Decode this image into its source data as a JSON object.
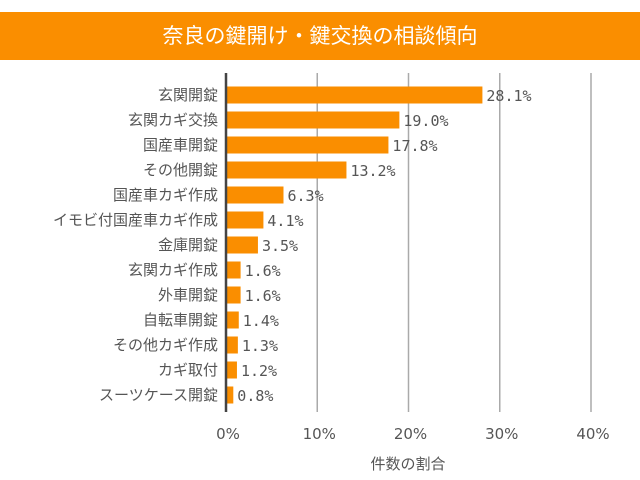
{
  "chart_data": {
    "type": "bar",
    "orientation": "horizontal",
    "title": "奈良の鍵開け・鍵交換の相談傾向",
    "xlabel": "件数の割合",
    "ylabel": "",
    "xlim": [
      0,
      40
    ],
    "xticks": [
      "0%",
      "10%",
      "20%",
      "30%",
      "40%"
    ],
    "grid": true,
    "bar_color": "#FA8E00",
    "categories": [
      "玄関開錠",
      "玄関カギ交換",
      "国産車開錠",
      "その他開錠",
      "国産車カギ作成",
      "イモビ付国産車カギ作成",
      "金庫開錠",
      "玄関カギ作成",
      "外車開錠",
      "自転車開錠",
      "その他カギ作成",
      "カギ取付",
      "スーツケース開錠"
    ],
    "values": [
      28.1,
      19.0,
      17.8,
      13.2,
      6.3,
      4.1,
      3.5,
      1.6,
      1.6,
      1.4,
      1.3,
      1.2,
      0.8
    ],
    "labels": [
      "28.1%",
      "19.0%",
      "17.8%",
      "13.2%",
      "6.3%",
      "4.1%",
      "3.5%",
      "1.6%",
      "1.6%",
      "1.4%",
      "1.3%",
      "1.2%",
      "0.8%"
    ]
  }
}
